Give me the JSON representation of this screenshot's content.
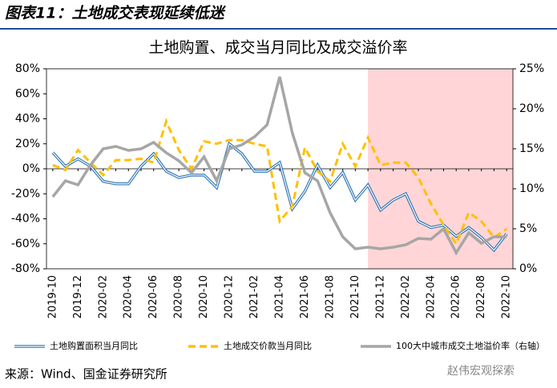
{
  "header": {
    "title": "图表11：土地成交表现延续低迷"
  },
  "chart_data": {
    "type": "line",
    "title": "土地购置、成交当月同比及成交溢价率",
    "categories": [
      "2019-10",
      null,
      "2019-12",
      null,
      "2020-02",
      null,
      "2020-04",
      null,
      "2020-06",
      null,
      "2020-08",
      null,
      "2020-10",
      null,
      "2020-12",
      null,
      "2021-02",
      null,
      "2021-04",
      null,
      "2021-06",
      null,
      "2021-08",
      null,
      "2021-10",
      null,
      "2021-12",
      null,
      "2022-02",
      null,
      "2022-04",
      null,
      "2022-06",
      null,
      "2022-08",
      null,
      "2022-10"
    ],
    "series": [
      {
        "name": "土地购置面积当月同比",
        "color": "#2e75b6",
        "style": "double",
        "values": [
          13,
          2,
          8,
          2,
          -10,
          -12,
          -12,
          2,
          12,
          -2,
          -7,
          -5,
          -5,
          -15,
          20,
          12,
          -2,
          -2,
          5,
          -32,
          -18,
          3,
          -15,
          -3,
          -25,
          -13,
          -33,
          -25,
          -20,
          -42,
          -47,
          -45,
          -54,
          -47,
          -55,
          -65,
          -52
        ]
      },
      {
        "name": "土地成交价款当月同比",
        "color": "#ffc000",
        "style": "dashed",
        "values": [
          3,
          -1,
          15,
          5,
          -5,
          7,
          7,
          8,
          5,
          38,
          15,
          0,
          22,
          20,
          23,
          23,
          20,
          18,
          -42,
          -30,
          17,
          -2,
          -10,
          20,
          2,
          25,
          3,
          5,
          5,
          -7,
          -28,
          -45,
          -60,
          -35,
          -42,
          -55,
          -48
        ]
      },
      {
        "name": "100大中城市成交土地溢价率（右轴）",
        "color": "#a6a6a6",
        "style": "solid",
        "axis": "y2",
        "values": [
          9,
          11,
          10.5,
          13,
          15,
          15.3,
          14.8,
          15,
          15.8,
          14.5,
          13.5,
          12,
          14,
          11,
          15,
          15.5,
          16.5,
          18,
          24,
          17,
          12,
          11,
          7,
          4,
          2.5,
          2.7,
          2.5,
          2.7,
          3,
          3.8,
          3.7,
          5,
          2,
          4.5,
          3.2,
          4,
          4
        ]
      }
    ],
    "ylim": [
      -80,
      80
    ],
    "yticks": [
      {
        "value": -80,
        "label": "-80%"
      },
      {
        "value": -60,
        "label": "-60%"
      },
      {
        "value": -40,
        "label": "-40%"
      },
      {
        "value": -20,
        "label": "-20%"
      },
      {
        "value": 0,
        "label": "0%"
      },
      {
        "value": 20,
        "label": "20%"
      },
      {
        "value": 40,
        "label": "40%"
      },
      {
        "value": 60,
        "label": "60%"
      },
      {
        "value": 80,
        "label": "80%"
      }
    ],
    "y2lim": [
      0,
      25
    ],
    "y2ticks": [
      {
        "value": 0,
        "label": "0%"
      },
      {
        "value": 5,
        "label": "5%"
      },
      {
        "value": 10,
        "label": "10%"
      },
      {
        "value": 15,
        "label": "15%"
      },
      {
        "value": 20,
        "label": "20%"
      },
      {
        "value": 25,
        "label": "25%"
      }
    ],
    "highlight": {
      "from_index": 25,
      "color": "#ffd5d7"
    },
    "legend": "bottom"
  },
  "footer": {
    "source": "来源：Wind、国金证券研究所",
    "watermark": "赵伟宏观探索"
  }
}
